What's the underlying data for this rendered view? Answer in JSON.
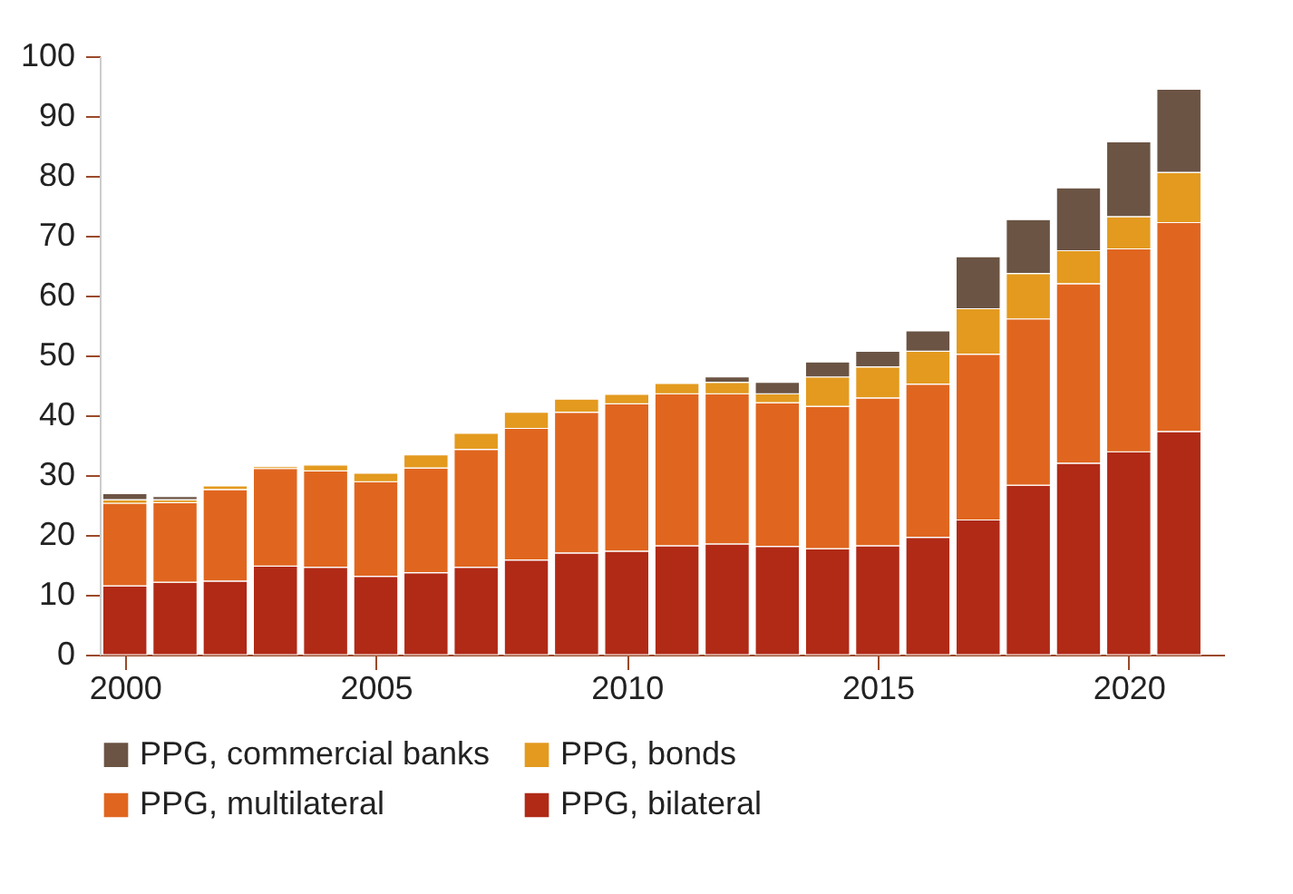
{
  "chart_data": {
    "type": "bar",
    "stacked": true,
    "x": [
      2000,
      2001,
      2002,
      2003,
      2004,
      2005,
      2006,
      2007,
      2008,
      2009,
      2010,
      2011,
      2012,
      2013,
      2014,
      2015,
      2016,
      2017,
      2018,
      2019,
      2020,
      2021
    ],
    "series": [
      {
        "name": "PPG, bilateral",
        "color": "#b02a16",
        "values": [
          11.5,
          12.1,
          12.3,
          14.8,
          14.6,
          13.1,
          13.7,
          14.6,
          15.8,
          17.0,
          17.3,
          18.2,
          18.5,
          18.1,
          17.7,
          18.2,
          19.6,
          22.5,
          28.3,
          32.0,
          33.9,
          37.3
        ]
      },
      {
        "name": "PPG, multilateral",
        "color": "#e0661f",
        "values": [
          13.8,
          13.3,
          15.3,
          16.3,
          16.1,
          15.8,
          17.5,
          19.7,
          22.0,
          23.5,
          24.6,
          25.4,
          25.1,
          24.0,
          23.8,
          24.7,
          25.6,
          27.7,
          27.8,
          30.0,
          33.9,
          34.9
        ]
      },
      {
        "name": "PPG, bonds",
        "color": "#e39a1f",
        "values": [
          0.6,
          0.5,
          0.6,
          0.3,
          1.0,
          1.4,
          2.2,
          2.7,
          2.7,
          2.2,
          1.6,
          1.7,
          1.9,
          1.5,
          4.9,
          5.2,
          5.5,
          7.6,
          7.6,
          5.5,
          5.4,
          8.4
        ]
      },
      {
        "name": "PPG, commercial banks",
        "color": "#6b5444",
        "values": [
          1.0,
          0.5,
          null,
          null,
          null,
          null,
          null,
          null,
          null,
          null,
          null,
          null,
          0.9,
          1.9,
          2.5,
          2.6,
          3.4,
          8.7,
          9.0,
          10.5,
          12.5,
          13.9
        ]
      }
    ],
    "xlim": [
      1999.5,
      2021.9
    ],
    "xticks": [
      2000,
      2005,
      2010,
      2015,
      2020
    ],
    "ylim": [
      0,
      100
    ],
    "yticks": [
      0,
      10,
      20,
      30,
      40,
      50,
      60,
      70,
      80,
      90,
      100
    ],
    "grid": false,
    "legend": "bottom"
  }
}
